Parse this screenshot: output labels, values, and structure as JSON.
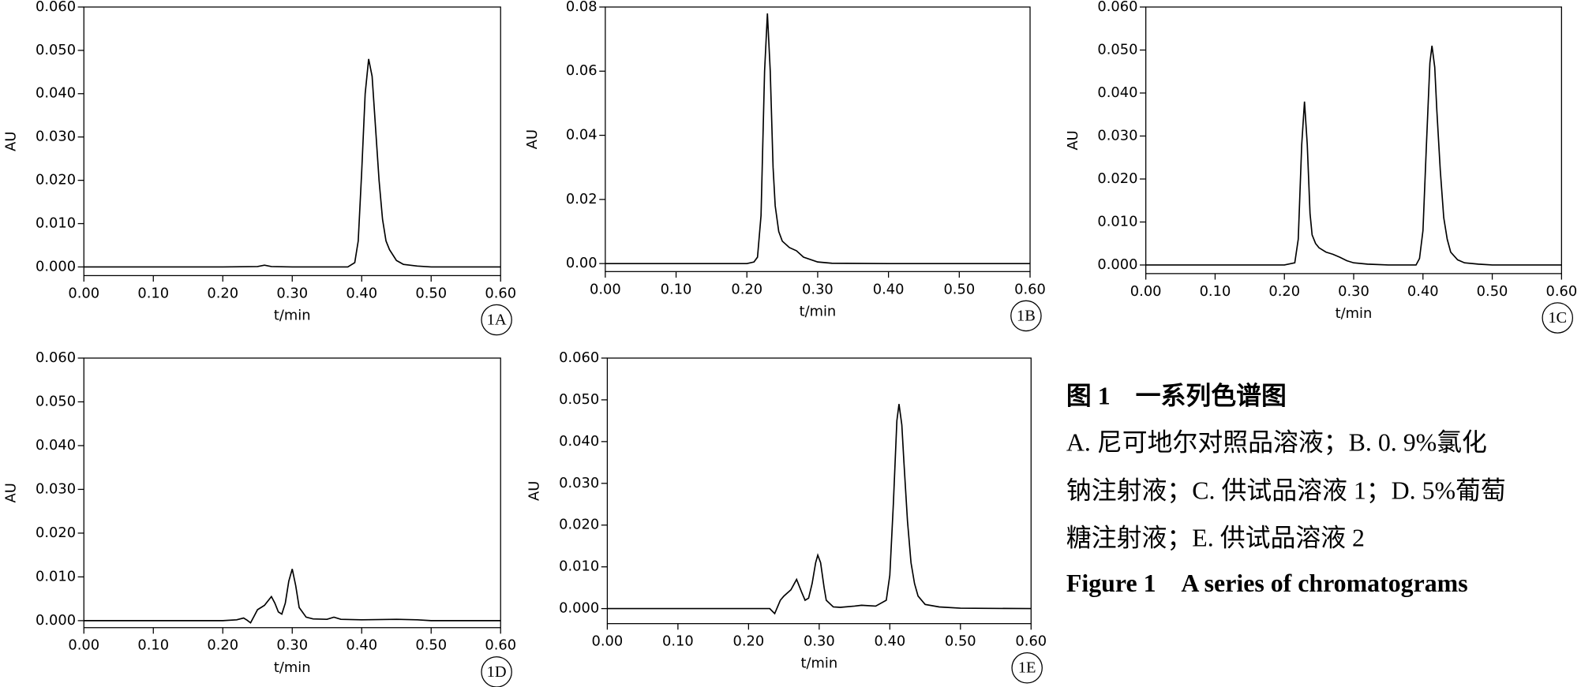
{
  "chart_data": [
    {
      "type": "line",
      "panel_label": "1A",
      "xlabel": "t/min",
      "ylabel": "AU",
      "color": "#000000",
      "xlim": [
        0,
        0.6
      ],
      "ylim": [
        -0.002,
        0.06
      ],
      "xticks": [
        {
          "value": 0,
          "label": "0.00"
        },
        {
          "value": 0.1,
          "label": "0.10"
        },
        {
          "value": 0.2,
          "label": "0.20"
        },
        {
          "value": 0.3,
          "label": "0.30"
        },
        {
          "value": 0.4,
          "label": "0.40"
        },
        {
          "value": 0.5,
          "label": "0.50"
        },
        {
          "value": 0.6,
          "label": "0.60"
        }
      ],
      "yticks": [
        {
          "value": 0,
          "label": "0.000"
        },
        {
          "value": 0.01,
          "label": "0.010"
        },
        {
          "value": 0.02,
          "label": "0.020"
        },
        {
          "value": 0.03,
          "label": "0.030"
        },
        {
          "value": 0.04,
          "label": "0.040"
        },
        {
          "value": 0.05,
          "label": "0.050"
        },
        {
          "value": 0.06,
          "label": "0.060"
        }
      ],
      "x": [
        0,
        0.05,
        0.1,
        0.15,
        0.2,
        0.25,
        0.26,
        0.27,
        0.3,
        0.35,
        0.38,
        0.39,
        0.395,
        0.4,
        0.405,
        0.41,
        0.415,
        0.42,
        0.425,
        0.43,
        0.435,
        0.44,
        0.45,
        0.46,
        0.48,
        0.5,
        0.55,
        0.6
      ],
      "values": [
        0,
        0,
        0,
        0,
        0,
        0.0001,
        0.0004,
        0.0001,
        0,
        0,
        0,
        0.001,
        0.006,
        0.022,
        0.04,
        0.048,
        0.044,
        0.032,
        0.02,
        0.011,
        0.006,
        0.004,
        0.0015,
        0.0006,
        0.0002,
        0,
        0,
        0
      ]
    },
    {
      "type": "line",
      "panel_label": "1B",
      "xlabel": "t/min",
      "ylabel": "AU",
      "color": "#000000",
      "xlim": [
        0,
        0.6
      ],
      "ylim": [
        -0.0025,
        0.08
      ],
      "xticks": [
        {
          "value": 0,
          "label": "0.00"
        },
        {
          "value": 0.1,
          "label": "0.10"
        },
        {
          "value": 0.2,
          "label": "0.20"
        },
        {
          "value": 0.3,
          "label": "0.30"
        },
        {
          "value": 0.4,
          "label": "0.40"
        },
        {
          "value": 0.5,
          "label": "0.50"
        },
        {
          "value": 0.6,
          "label": "0.60"
        }
      ],
      "yticks": [
        {
          "value": 0,
          "label": "0.00"
        },
        {
          "value": 0.02,
          "label": "0.02"
        },
        {
          "value": 0.04,
          "label": "0.04"
        },
        {
          "value": 0.06,
          "label": "0.06"
        },
        {
          "value": 0.08,
          "label": "0.08"
        }
      ],
      "x": [
        0,
        0.1,
        0.2,
        0.21,
        0.215,
        0.22,
        0.225,
        0.229,
        0.233,
        0.237,
        0.24,
        0.245,
        0.25,
        0.26,
        0.27,
        0.28,
        0.3,
        0.32,
        0.4,
        0.5,
        0.6
      ],
      "values": [
        0,
        0,
        0,
        0.0005,
        0.002,
        0.015,
        0.06,
        0.078,
        0.06,
        0.03,
        0.018,
        0.01,
        0.007,
        0.005,
        0.004,
        0.002,
        0.0005,
        0.0001,
        0,
        0,
        0
      ]
    },
    {
      "type": "line",
      "panel_label": "1C",
      "xlabel": "t/min",
      "ylabel": "AU",
      "color": "#000000",
      "xlim": [
        0,
        0.6
      ],
      "ylim": [
        -0.002,
        0.06
      ],
      "xticks": [
        {
          "value": 0,
          "label": "0.00"
        },
        {
          "value": 0.1,
          "label": "0.10"
        },
        {
          "value": 0.2,
          "label": "0.20"
        },
        {
          "value": 0.3,
          "label": "0.30"
        },
        {
          "value": 0.4,
          "label": "0.40"
        },
        {
          "value": 0.5,
          "label": "0.50"
        },
        {
          "value": 0.6,
          "label": "0.60"
        }
      ],
      "yticks": [
        {
          "value": 0,
          "label": "0.000"
        },
        {
          "value": 0.01,
          "label": "0.010"
        },
        {
          "value": 0.02,
          "label": "0.020"
        },
        {
          "value": 0.03,
          "label": "0.030"
        },
        {
          "value": 0.04,
          "label": "0.040"
        },
        {
          "value": 0.05,
          "label": "0.050"
        },
        {
          "value": 0.06,
          "label": "0.060"
        }
      ],
      "x": [
        0,
        0.1,
        0.2,
        0.215,
        0.22,
        0.225,
        0.229,
        0.233,
        0.237,
        0.24,
        0.245,
        0.25,
        0.26,
        0.27,
        0.28,
        0.29,
        0.3,
        0.32,
        0.35,
        0.39,
        0.395,
        0.4,
        0.405,
        0.41,
        0.413,
        0.417,
        0.42,
        0.425,
        0.43,
        0.435,
        0.44,
        0.45,
        0.46,
        0.48,
        0.5,
        0.6
      ],
      "values": [
        0,
        0,
        0,
        0.0005,
        0.006,
        0.028,
        0.038,
        0.028,
        0.012,
        0.007,
        0.005,
        0.004,
        0.003,
        0.0025,
        0.0018,
        0.001,
        0.0005,
        0.0002,
        0,
        0,
        0.0015,
        0.008,
        0.028,
        0.047,
        0.051,
        0.046,
        0.036,
        0.022,
        0.011,
        0.006,
        0.003,
        0.0012,
        0.0005,
        0.0002,
        0,
        0
      ]
    },
    {
      "type": "line",
      "panel_label": "1D",
      "xlabel": "t/min",
      "ylabel": "AU",
      "color": "#000000",
      "xlim": [
        0,
        0.6
      ],
      "ylim": [
        -0.0016,
        0.06
      ],
      "xticks": [
        {
          "value": 0,
          "label": "0.00"
        },
        {
          "value": 0.1,
          "label": "0.10"
        },
        {
          "value": 0.2,
          "label": "0.20"
        },
        {
          "value": 0.3,
          "label": "0.30"
        },
        {
          "value": 0.4,
          "label": "0.40"
        },
        {
          "value": 0.5,
          "label": "0.50"
        },
        {
          "value": 0.6,
          "label": "0.60"
        }
      ],
      "yticks": [
        {
          "value": 0,
          "label": "0.000"
        },
        {
          "value": 0.01,
          "label": "0.010"
        },
        {
          "value": 0.02,
          "label": "0.020"
        },
        {
          "value": 0.03,
          "label": "0.030"
        },
        {
          "value": 0.04,
          "label": "0.040"
        },
        {
          "value": 0.05,
          "label": "0.050"
        },
        {
          "value": 0.06,
          "label": "0.060"
        }
      ],
      "x": [
        0,
        0.1,
        0.2,
        0.22,
        0.23,
        0.235,
        0.24,
        0.245,
        0.25,
        0.26,
        0.27,
        0.275,
        0.28,
        0.285,
        0.29,
        0.295,
        0.3,
        0.305,
        0.31,
        0.32,
        0.33,
        0.35,
        0.36,
        0.37,
        0.4,
        0.45,
        0.48,
        0.5,
        0.6
      ],
      "values": [
        0,
        0,
        0,
        0.0002,
        0.0006,
        0.0001,
        -0.0005,
        0.001,
        0.0025,
        0.0035,
        0.0055,
        0.004,
        0.002,
        0.0015,
        0.004,
        0.009,
        0.0118,
        0.008,
        0.003,
        0.0008,
        0.0004,
        0.0003,
        0.0008,
        0.0003,
        0.0002,
        0.0003,
        0.0002,
        0,
        0
      ]
    },
    {
      "type": "line",
      "panel_label": "1E",
      "xlabel": "t/min",
      "ylabel": "AU",
      "color": "#000000",
      "xlim": [
        0,
        0.6
      ],
      "ylim": [
        -0.0036,
        0.06
      ],
      "xticks": [
        {
          "value": 0,
          "label": "0.00"
        },
        {
          "value": 0.1,
          "label": "0.10"
        },
        {
          "value": 0.2,
          "label": "0.20"
        },
        {
          "value": 0.3,
          "label": "0.30"
        },
        {
          "value": 0.4,
          "label": "0.40"
        },
        {
          "value": 0.5,
          "label": "0.50"
        },
        {
          "value": 0.6,
          "label": "0.60"
        }
      ],
      "yticks": [
        {
          "value": 0,
          "label": "0.000"
        },
        {
          "value": 0.01,
          "label": "0.010"
        },
        {
          "value": 0.02,
          "label": "0.020"
        },
        {
          "value": 0.03,
          "label": "0.030"
        },
        {
          "value": 0.04,
          "label": "0.040"
        },
        {
          "value": 0.05,
          "label": "0.050"
        },
        {
          "value": 0.06,
          "label": "0.060"
        }
      ],
      "x": [
        0,
        0.1,
        0.2,
        0.23,
        0.237,
        0.245,
        0.25,
        0.26,
        0.268,
        0.275,
        0.28,
        0.285,
        0.29,
        0.295,
        0.298,
        0.302,
        0.307,
        0.31,
        0.32,
        0.33,
        0.35,
        0.36,
        0.38,
        0.395,
        0.4,
        0.405,
        0.41,
        0.413,
        0.417,
        0.42,
        0.425,
        0.43,
        0.435,
        0.44,
        0.45,
        0.47,
        0.5,
        0.6
      ],
      "values": [
        0,
        0,
        0,
        0,
        -0.0012,
        0.002,
        0.003,
        0.0045,
        0.007,
        0.004,
        0.002,
        0.0025,
        0.006,
        0.011,
        0.0128,
        0.011,
        0.005,
        0.002,
        0.0004,
        0.0003,
        0.0006,
        0.0008,
        0.0006,
        0.002,
        0.008,
        0.025,
        0.045,
        0.049,
        0.044,
        0.035,
        0.021,
        0.011,
        0.006,
        0.003,
        0.001,
        0.0004,
        0.0001,
        0
      ]
    }
  ],
  "caption": {
    "title": "图 1　一系列色谱图",
    "lines": [
      "A. 尼可地尔对照品溶液；B. 0. 9%氯化",
      "钠注射液；C. 供试品溶液 1；D. 5%葡萄",
      "糖注射液；E. 供试品溶液 2"
    ],
    "english_title": "Figure 1　A series of chromatograms"
  }
}
